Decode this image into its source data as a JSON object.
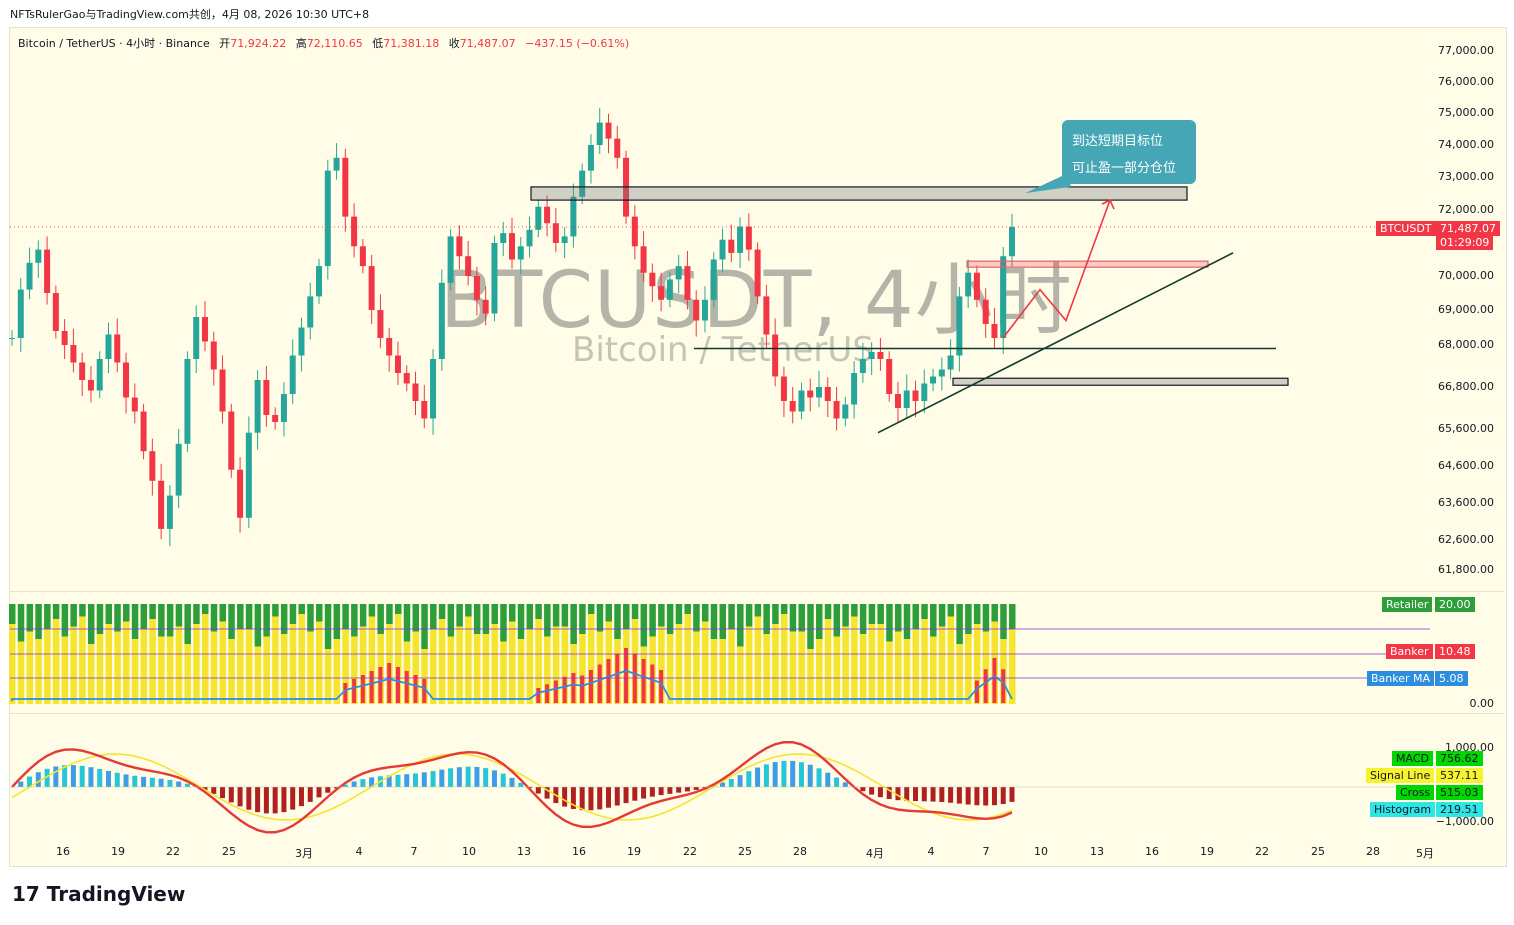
{
  "top_line": "NFTsRulerGao与TradingView.com共创，4月 08, 2026 10:30 UTC+8",
  "header": {
    "symbol": "Bitcoin / TetherUS · 4小时 · Binance",
    "open_label": "开",
    "open": "71,924.22",
    "high_label": "高",
    "high": "72,110.65",
    "low_label": "低",
    "low": "71,381.18",
    "close_label": "收",
    "close": "71,487.07",
    "change": "−437.15 (−0.61%)"
  },
  "watermark": {
    "line1": "BTCUSDT, 4小时",
    "line2": "Bitcoin / TetherUS"
  },
  "annotation": {
    "line1": "到达短期目标位",
    "line2": "可止盈一部分仓位"
  },
  "price_tag": {
    "symbol": "BTCUSDT",
    "price": "71,487.07",
    "countdown": "01:29:09"
  },
  "colors": {
    "up": "#26a69a",
    "down": "#f23645",
    "yellow": "#f5e52f",
    "green_bar": "#2e9e3b",
    "blue": "#2d8ee0",
    "annotation": "#45a7b6"
  },
  "chart_data": [
    {
      "type": "candlestick",
      "title": "Bitcoin / TetherUS · 4小时 · Binance",
      "x_ticks": [
        "16",
        "19",
        "22",
        "25",
        "3月",
        "4",
        "7",
        "10",
        "13",
        "16",
        "19",
        "22",
        "25",
        "28",
        "4月",
        "4",
        "7",
        "10",
        "13",
        "16",
        "19",
        "22",
        "25",
        "28",
        "5月"
      ],
      "y_ticks": [
        "77,000.00",
        "76,000.00",
        "75,000.00",
        "74,000.00",
        "73,000.00",
        "72,000.00",
        "70,000.00",
        "69,000.00",
        "68,000.00",
        "66,800.00",
        "65,600.00",
        "64,600.00",
        "63,600.00",
        "62,600.00",
        "61,800.00"
      ],
      "ylim": [
        61300,
        77500
      ],
      "last_price": 71487.07,
      "close_series": [
        68200,
        69600,
        70400,
        70800,
        69500,
        68400,
        68000,
        67500,
        67000,
        66700,
        67600,
        68300,
        67500,
        66500,
        66100,
        65000,
        64200,
        62900,
        63800,
        65200,
        67600,
        68800,
        68100,
        67300,
        66100,
        64500,
        63200,
        65500,
        67000,
        66000,
        65800,
        66600,
        67700,
        68500,
        69400,
        70300,
        73200,
        73600,
        71800,
        70900,
        70300,
        69000,
        68200,
        67700,
        67200,
        66900,
        66400,
        65900,
        67600,
        69800,
        71200,
        70600,
        70000,
        69300,
        68900,
        71000,
        71300,
        70500,
        70900,
        71400,
        72100,
        71600,
        71000,
        71200,
        72400,
        73200,
        74000,
        74700,
        74200,
        73600,
        71800,
        70900,
        70100,
        69700,
        69300,
        69900,
        70300,
        69300,
        68700,
        69300,
        70500,
        71100,
        70700,
        71500,
        70800,
        69400,
        68300,
        67100,
        66400,
        66100,
        66700,
        66500,
        66800,
        66400,
        65900,
        66300,
        67200,
        67600,
        67800,
        67600,
        66600,
        66200,
        66700,
        66400,
        66900,
        67100,
        67300,
        67700,
        69400,
        70100,
        69300,
        68600,
        68200,
        70600,
        71487
      ],
      "projection": [
        68200,
        69600,
        68700,
        72300
      ],
      "trendlines": [
        {
          "from": [
            65500,
            66900
          ],
          "to": [
            70700
          ]
        },
        {
          "level": 67900
        }
      ],
      "zones": [
        {
          "low": 72300,
          "high": 72700,
          "kind": "resistance"
        },
        {
          "low": 70300,
          "high": 70450,
          "kind": "target"
        },
        {
          "low": 66850,
          "high": 67050,
          "kind": "support"
        }
      ]
    },
    {
      "type": "bar",
      "title": "Banker / Retailer",
      "y_ticks": [
        "0.00"
      ],
      "series": [
        {
          "name": "Retailer",
          "last": "20.00"
        },
        {
          "name": "Banker",
          "last": "10.48"
        },
        {
          "name": "Banker MA",
          "last": "5.08"
        }
      ]
    },
    {
      "type": "line",
      "title": "MACD",
      "y_ticks": [
        "1,000.00",
        "−1,000.00"
      ],
      "series": [
        {
          "name": "MACD",
          "last": "756.62"
        },
        {
          "name": "Signal Line",
          "last": "537.11"
        },
        {
          "name": "Cross",
          "last": "515.03"
        },
        {
          "name": "Histogram",
          "last": "219.51"
        }
      ]
    }
  ],
  "branding": {
    "logo": "TradingView"
  }
}
